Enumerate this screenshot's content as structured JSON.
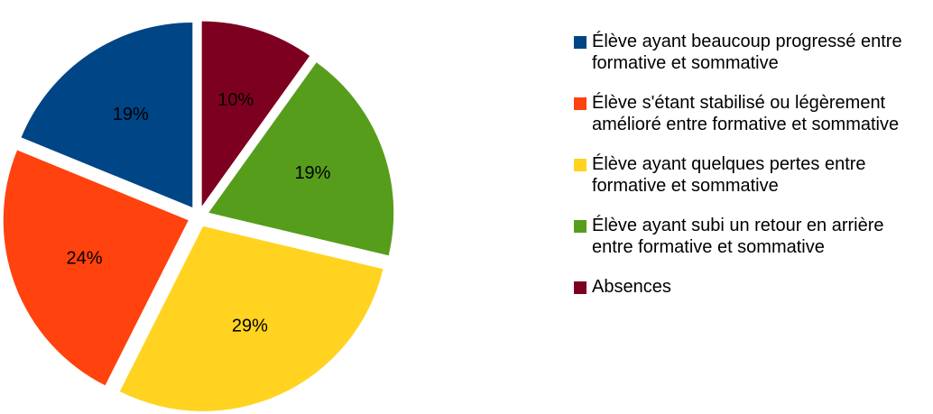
{
  "chart_data": {
    "type": "pie",
    "series": [
      {
        "name": "Élève ayant beaucoup progressé entre formative et sommative",
        "color": "#004586",
        "values": [
          19
        ],
        "value_labels": [
          "19%"
        ]
      },
      {
        "name": "Élève s'étant stabilisé ou légèrement amélioré entre formative et sommative",
        "color": "#ff420e",
        "values": [
          24
        ],
        "value_labels": [
          "24%"
        ]
      },
      {
        "name": "Élève ayant quelques pertes entre formative et sommative",
        "color": "#ffd320",
        "values": [
          29
        ],
        "value_labels": [
          "29%"
        ]
      },
      {
        "name": "Élève ayant subi un retour en arrière entre formative et sommative",
        "color": "#579d1c",
        "values": [
          19
        ],
        "value_labels": [
          "19%"
        ]
      },
      {
        "name": "Absences",
        "color": "#7e0021",
        "values": [
          10
        ],
        "value_labels": [
          "10%"
        ]
      }
    ],
    "legend": "right"
  }
}
